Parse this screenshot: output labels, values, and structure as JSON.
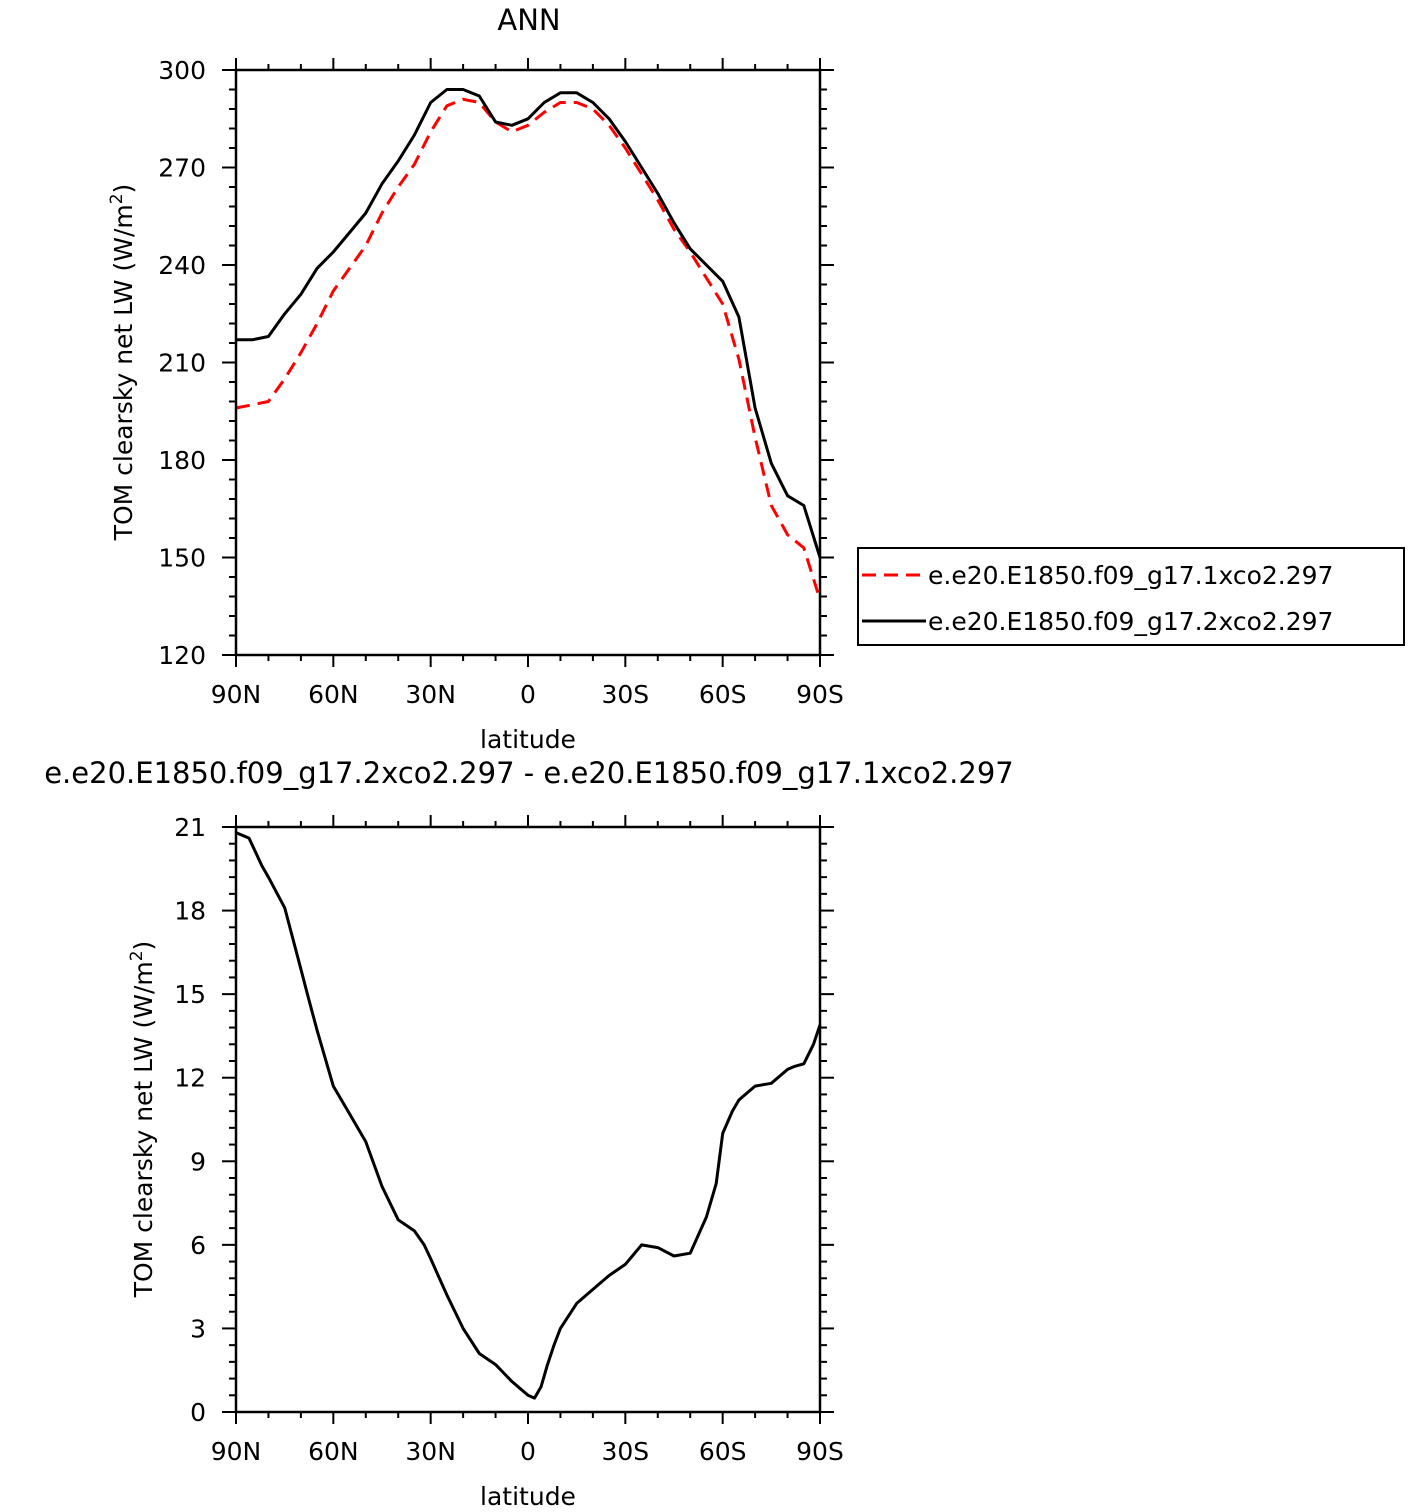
{
  "chart_data": [
    {
      "type": "line",
      "title": "ANN",
      "xlabel": "latitude",
      "ylabel": "TOM clearsky net LW (W/m",
      "ylabel_superscript": "2",
      "ylabel_suffix": ")",
      "xlim": [
        90,
        -90
      ],
      "ylim": [
        120,
        300
      ],
      "x_ticks": [
        90,
        60,
        30,
        0,
        -30,
        -60,
        -90
      ],
      "x_tick_labels": [
        "90N",
        "60N",
        "30N",
        "0",
        "30S",
        "60S",
        "90S"
      ],
      "y_ticks": [
        120,
        150,
        180,
        210,
        240,
        270,
        300
      ],
      "y_tick_labels": [
        "120",
        "150",
        "180",
        "210",
        "240",
        "270",
        "300"
      ],
      "legend_position": "right",
      "series": [
        {
          "name": "e.e20.E1850.f09_g17.1xco2.297",
          "color": "#ff0000",
          "dash": "dashed",
          "x": [
            90,
            85,
            80,
            75,
            70,
            65,
            60,
            55,
            50,
            45,
            40,
            35,
            30,
            25,
            20,
            15,
            10,
            5,
            0,
            -5,
            -10,
            -15,
            -20,
            -25,
            -30,
            -35,
            -40,
            -45,
            -50,
            -55,
            -60,
            -65,
            -70,
            -75,
            -80,
            -85,
            -90
          ],
          "values": [
            196,
            197,
            198,
            205,
            213,
            222,
            232,
            239,
            246,
            256,
            264,
            271,
            281,
            289,
            291,
            290,
            284,
            281,
            283,
            287,
            290,
            290,
            288,
            283,
            276,
            268,
            260,
            251,
            244,
            236,
            228,
            211,
            187,
            166,
            157,
            153,
            137
          ]
        },
        {
          "name": "e.e20.E1850.f09_g17.2xco2.297",
          "color": "#000000",
          "dash": "solid",
          "x": [
            90,
            85,
            80,
            75,
            70,
            65,
            60,
            55,
            50,
            45,
            40,
            35,
            30,
            25,
            20,
            15,
            10,
            5,
            0,
            -5,
            -10,
            -15,
            -20,
            -25,
            -30,
            -35,
            -40,
            -45,
            -50,
            -55,
            -60,
            -65,
            -70,
            -75,
            -80,
            -85,
            -90
          ],
          "values": [
            217,
            217,
            218,
            225,
            231,
            239,
            244,
            250,
            256,
            265,
            272,
            280,
            290,
            294,
            294,
            292,
            284,
            283,
            285,
            290,
            293,
            293,
            290,
            285,
            278,
            270,
            262,
            253,
            245,
            240,
            235,
            224,
            196,
            179,
            169,
            166,
            150
          ]
        }
      ]
    },
    {
      "type": "line",
      "title": "e.e20.E1850.f09_g17.2xco2.297 - e.e20.E1850.f09_g17.1xco2.297",
      "xlabel": "latitude",
      "ylabel": "TOM clearsky net LW (W/m",
      "ylabel_superscript": "2",
      "ylabel_suffix": ")",
      "xlim": [
        90,
        -90
      ],
      "ylim": [
        0,
        21
      ],
      "x_ticks": [
        90,
        60,
        30,
        0,
        -30,
        -60,
        -90
      ],
      "x_tick_labels": [
        "90N",
        "60N",
        "30N",
        "0",
        "30S",
        "60S",
        "90S"
      ],
      "y_ticks": [
        0,
        3,
        6,
        9,
        12,
        15,
        18,
        21
      ],
      "y_tick_labels": [
        "0",
        "3",
        "6",
        "9",
        "12",
        "15",
        "18",
        "21"
      ],
      "series": [
        {
          "color": "#000000",
          "dash": "solid",
          "x": [
            90,
            86,
            82,
            80,
            75,
            70,
            68,
            65,
            60,
            55,
            50,
            45,
            40,
            35,
            32,
            30,
            25,
            20,
            15,
            10,
            5,
            2,
            0,
            -2,
            -4,
            -6,
            -8,
            -10,
            -15,
            -20,
            -25,
            -30,
            -35,
            -40,
            -45,
            -50,
            -55,
            -58,
            -60,
            -63,
            -65,
            -68,
            -70,
            -75,
            -80,
            -82,
            -85,
            -88,
            -90
          ],
          "values": [
            20.8,
            20.6,
            19.6,
            19.2,
            18.1,
            15.9,
            15.0,
            13.7,
            11.7,
            10.7,
            9.7,
            8.1,
            6.9,
            6.5,
            6.0,
            5.5,
            4.2,
            3.0,
            2.1,
            1.7,
            1.1,
            0.8,
            0.6,
            0.5,
            0.9,
            1.7,
            2.4,
            3.0,
            3.9,
            4.4,
            4.9,
            5.3,
            6.0,
            5.9,
            5.6,
            5.7,
            7.0,
            8.2,
            10.0,
            10.8,
            11.2,
            11.5,
            11.7,
            11.8,
            12.3,
            12.4,
            12.5,
            13.2,
            13.9
          ]
        }
      ]
    }
  ],
  "legend": {
    "items": [
      {
        "label": "e.e20.E1850.f09_g17.1xco2.297",
        "color": "#ff0000",
        "dash": "dashed"
      },
      {
        "label": "e.e20.E1850.f09_g17.2xco2.297",
        "color": "#000000",
        "dash": "solid"
      }
    ]
  }
}
